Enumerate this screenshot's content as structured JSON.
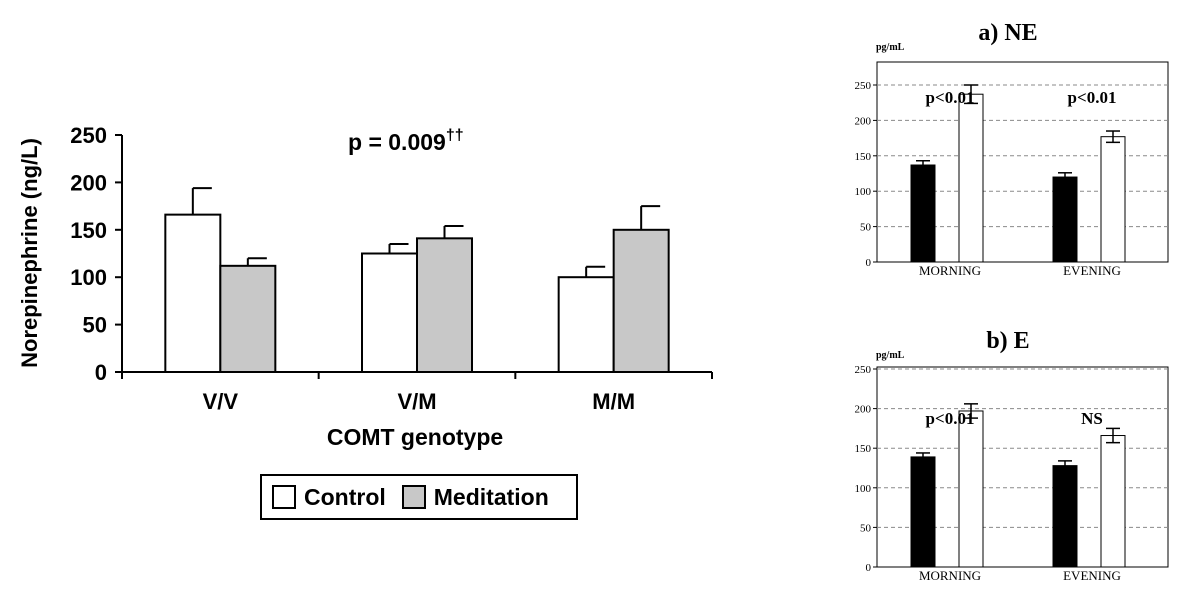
{
  "chart_data": [
    {
      "type": "bar",
      "title": "p = 0.009",
      "title_superscript": "††",
      "xlabel": "COMT genotype",
      "ylabel": "Norepinephrine (ng/L)",
      "ylim": [
        0,
        250
      ],
      "yticks": [
        "0",
        "50",
        "100",
        "150",
        "200",
        "250"
      ],
      "categories": [
        "V/V",
        "V/M",
        "M/M"
      ],
      "series": [
        {
          "name": "Control",
          "color": "#ffffff",
          "values": [
            166,
            125,
            100
          ],
          "errors": [
            28,
            10,
            11
          ]
        },
        {
          "name": "Meditation",
          "color": "#c8c8c8",
          "values": [
            112,
            141,
            150
          ],
          "errors": [
            8,
            13,
            25
          ]
        }
      ],
      "legend": "bottom"
    },
    {
      "type": "bar",
      "title": "a) NE",
      "unit": "pg/mL",
      "ylim": [
        0,
        250
      ],
      "yticks": [
        "0",
        "50",
        "100",
        "150",
        "200",
        "250"
      ],
      "grid": true,
      "categories": [
        "MORNING",
        "EVENING"
      ],
      "annotations": [
        "p<0.01",
        "p<0.01"
      ],
      "series": [
        {
          "color": "#000000",
          "values": [
            137,
            120
          ],
          "errors": [
            6,
            6
          ]
        },
        {
          "color": "#ffffff",
          "values": [
            237,
            177
          ],
          "errors": [
            13,
            8
          ]
        }
      ]
    },
    {
      "type": "bar",
      "title": "b) E",
      "unit": "pg/mL",
      "ylim": [
        0,
        250
      ],
      "yticks": [
        "0",
        "50",
        "100",
        "150",
        "200",
        "250"
      ],
      "grid": true,
      "categories": [
        "MORNING",
        "EVENING"
      ],
      "annotations": [
        "p<0.01",
        "NS"
      ],
      "series": [
        {
          "color": "#000000",
          "values": [
            139,
            128
          ],
          "errors": [
            5,
            6
          ]
        },
        {
          "color": "#ffffff",
          "values": [
            197,
            166
          ],
          "errors": [
            9,
            9
          ]
        }
      ]
    }
  ]
}
